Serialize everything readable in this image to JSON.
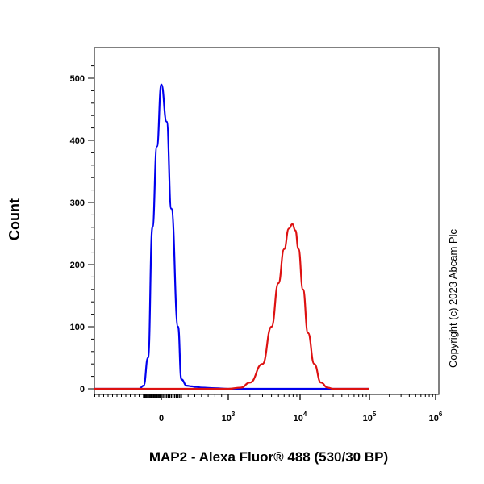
{
  "chart_data": {
    "type": "line",
    "title": "",
    "xlabel": "MAP2 - Alexa Fluor® 488 (530/30 BP)",
    "ylabel": "Count",
    "ylim": [
      0,
      560
    ],
    "yticks": [
      0,
      100,
      200,
      300,
      400,
      500
    ],
    "xscale": "biexponential (linear near 0, log above 10^3)",
    "xlim": [
      -2000,
      1000000
    ],
    "xticks": [
      {
        "value": 0,
        "base": "0",
        "exp": ""
      },
      {
        "value": 1000,
        "base": "10",
        "exp": "3"
      },
      {
        "value": 10000,
        "base": "10",
        "exp": "4"
      },
      {
        "value": 100000,
        "base": "10",
        "exp": "5"
      },
      {
        "value": 1000000,
        "base": "10",
        "exp": "6"
      }
    ],
    "grid": false,
    "legend": "none",
    "series": [
      {
        "color": "#0000ee",
        "x": [
          -2000,
          -500,
          -400,
          -300,
          -200,
          -100,
          0,
          80,
          150,
          250,
          300,
          380,
          450,
          520,
          600,
          800,
          1000,
          1500,
          3000,
          100000
        ],
        "y": [
          0,
          0,
          5,
          50,
          260,
          390,
          490,
          430,
          290,
          100,
          15,
          5,
          4,
          3,
          2,
          1,
          0,
          0,
          0,
          0
        ]
      },
      {
        "color": "#dd1111",
        "x": [
          -2000,
          1000,
          1500,
          2000,
          3000,
          4000,
          5000,
          6000,
          7000,
          7800,
          8600,
          9500,
          11000,
          13000,
          16000,
          20000,
          25000,
          30000,
          100000
        ],
        "y": [
          0,
          0,
          2,
          10,
          40,
          100,
          170,
          225,
          258,
          265,
          255,
          225,
          160,
          90,
          40,
          10,
          2,
          0,
          0
        ]
      }
    ]
  },
  "copyright": "Copyright (c) 2023 Abcam Plc"
}
